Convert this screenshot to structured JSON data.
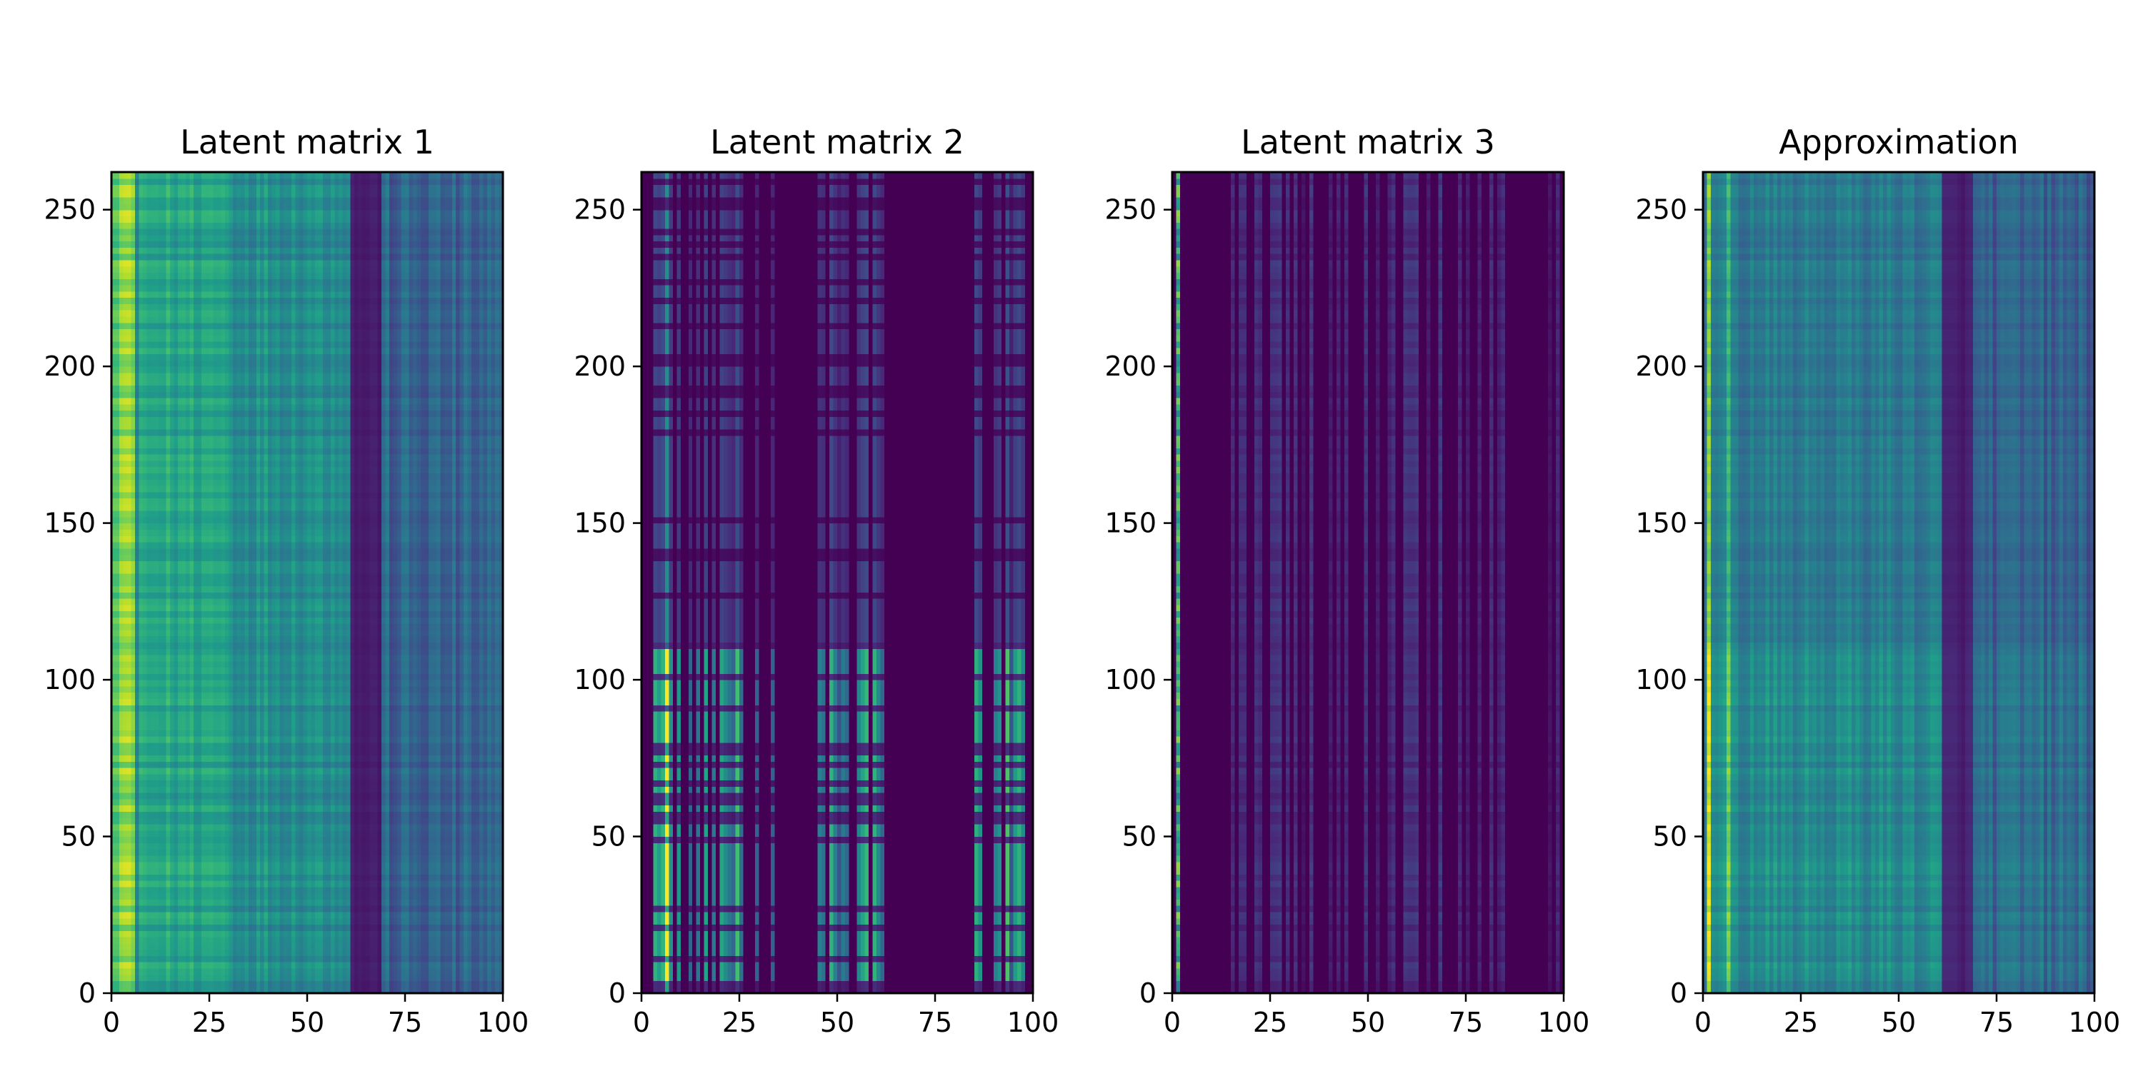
{
  "chart_data": [
    {
      "type": "heatmap",
      "title": "Latent matrix 1",
      "xlim": [
        0,
        100
      ],
      "ylim": [
        0,
        262
      ],
      "xticks": [
        "0",
        "25",
        "50",
        "75",
        "100"
      ],
      "yticks": [
        "0",
        "50",
        "100",
        "150",
        "200",
        "250"
      ],
      "colormap": "viridis",
      "pattern": "bright yellow-green band at columns 0-5, green through column 60, dark band from about 61 to 68, blue-purple stripes to 100; faint horizontal row stripes"
    },
    {
      "type": "heatmap",
      "title": "Latent matrix 2",
      "xlim": [
        0,
        100
      ],
      "ylim": [
        0,
        262
      ],
      "xticks": [
        "0",
        "25",
        "50",
        "75",
        "100"
      ],
      "yticks": [
        "0",
        "50",
        "100",
        "150",
        "200",
        "250"
      ],
      "colormap": "viridis",
      "pattern": "mostly dark purple; sparse vertical streaks near columns 0-33, 45-62 and 85-100, strongest at the bottom (rows 0-110); a bright yellow column near x=6"
    },
    {
      "type": "heatmap",
      "title": "Latent matrix 3",
      "xlim": [
        0,
        100
      ],
      "ylim": [
        0,
        262
      ],
      "xticks": [
        "0",
        "25",
        "50",
        "75",
        "100"
      ],
      "yticks": [
        "0",
        "50",
        "100",
        "150",
        "200",
        "250"
      ],
      "colormap": "viridis",
      "pattern": "almost entirely dark purple with faint vertical streaks; thin bright column near x=1"
    },
    {
      "type": "heatmap",
      "title": "Approximation",
      "xlim": [
        0,
        100
      ],
      "ylim": [
        0,
        262
      ],
      "xticks": [
        "0",
        "25",
        "50",
        "75",
        "100"
      ],
      "yticks": [
        "0",
        "50",
        "100",
        "150",
        "200",
        "250"
      ],
      "colormap": "viridis",
      "pattern": "teal-green over columns 0-60 with brighter bottom rows 0-110, bright thin column near x=1 and x=6, dark band at 61-68, blue-purple stripes to 100"
    }
  ],
  "colors": {
    "viridis_low": "#440154",
    "viridis_mid": "#21918c",
    "viridis_high": "#fde725"
  }
}
